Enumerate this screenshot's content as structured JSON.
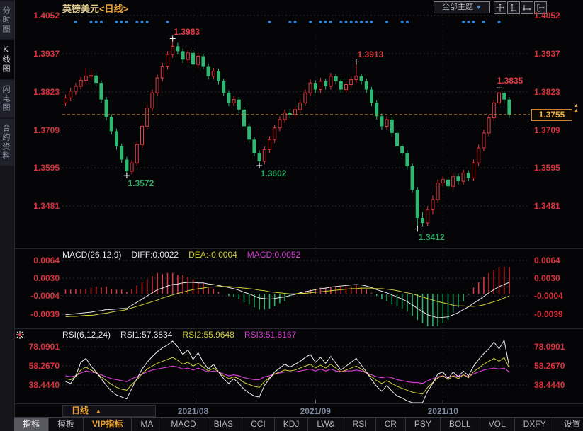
{
  "window": {
    "title_symbol": "英镑美元",
    "title_period": "<日线>"
  },
  "header": {
    "themes_button_label": "全部主题",
    "themes_caret": "▼",
    "icons": [
      "pan",
      "scale-y-axis",
      "scale-x-axis",
      "shift-right"
    ]
  },
  "sidebar": {
    "items": [
      {
        "label": "分时图",
        "selected": false
      },
      {
        "label": "K线图",
        "selected": true
      },
      {
        "label": "闪电图",
        "selected": false
      },
      {
        "label": "合约资料",
        "selected": false
      }
    ]
  },
  "colors": {
    "up": "#e23b44",
    "down": "#2eb872",
    "axis_label": "#d8323c",
    "annotation_high": "#e23b44",
    "annotation_low": "#2fae6a",
    "accent_orange": "#eca32f",
    "current_price_line": "#c8862f",
    "event_dot": "#2f7fd6",
    "grid": "#2c2c33",
    "month_line": "#1f1f26",
    "diff_line": "#e8e8ec",
    "dea_line": "#cfcf3a",
    "macd_line": "#d23bd2",
    "rsi1_line": "#f0f0f0",
    "rsi2_line": "#cfcf3a",
    "rsi3_line": "#d23bd2",
    "cross_marker": "#ffffff",
    "month_label": "#7e8ca2"
  },
  "chart_data": {
    "type": "candlestick",
    "symbol": "英镑美元",
    "period": "日线",
    "price_axis_labels": [
      "1.4052",
      "1.3937",
      "1.3823",
      "1.3709",
      "1.3595",
      "1.3481"
    ],
    "current_price": "1.3755",
    "x_axis_labels": [
      {
        "label": "2021/08",
        "index": 25
      },
      {
        "label": "2021/09",
        "index": 49
      },
      {
        "label": "2021/10",
        "index": 74
      }
    ],
    "annotations": {
      "highs": [
        {
          "label": "1.3983",
          "index": 21
        },
        {
          "label": "1.3913",
          "index": 57
        },
        {
          "label": "1.3835",
          "index": 85
        }
      ],
      "lows": [
        {
          "label": "1.3572",
          "index": 12
        },
        {
          "label": "1.3602",
          "index": 38
        },
        {
          "label": "1.3412",
          "index": 69
        }
      ]
    },
    "event_dot_indices": [
      2,
      5,
      6,
      7,
      10,
      11,
      12,
      14,
      15,
      16,
      20,
      40,
      44,
      45,
      48,
      50,
      51,
      52,
      54,
      55,
      56,
      57,
      58,
      59,
      60,
      63,
      66,
      67,
      78,
      79,
      80,
      82,
      85
    ],
    "candles": [
      [
        1.379,
        1.3815,
        1.378,
        1.3805
      ],
      [
        1.3805,
        1.3835,
        1.3795,
        1.3825
      ],
      [
        1.3825,
        1.385,
        1.3815,
        1.384
      ],
      [
        1.384,
        1.3868,
        1.383,
        1.3858
      ],
      [
        1.3858,
        1.3895,
        1.3848,
        1.387
      ],
      [
        1.387,
        1.3888,
        1.3858,
        1.3872
      ],
      [
        1.3872,
        1.388,
        1.384,
        1.385
      ],
      [
        1.385,
        1.3858,
        1.379,
        1.38
      ],
      [
        1.38,
        1.3808,
        1.3738,
        1.3748
      ],
      [
        1.3748,
        1.3756,
        1.3695,
        1.3705
      ],
      [
        1.3705,
        1.3713,
        1.365,
        1.366
      ],
      [
        1.366,
        1.3668,
        1.361,
        1.362
      ],
      [
        1.362,
        1.3628,
        1.3572,
        1.3585
      ],
      [
        1.3585,
        1.362,
        1.3575,
        1.361
      ],
      [
        1.361,
        1.3675,
        1.36,
        1.3665
      ],
      [
        1.3665,
        1.373,
        1.3655,
        1.372
      ],
      [
        1.372,
        1.3785,
        1.371,
        1.3775
      ],
      [
        1.3775,
        1.383,
        1.3765,
        1.382
      ],
      [
        1.382,
        1.3875,
        1.381,
        1.3865
      ],
      [
        1.3865,
        1.391,
        1.3855,
        1.39
      ],
      [
        1.39,
        1.3945,
        1.389,
        1.3935
      ],
      [
        1.3935,
        1.3983,
        1.3925,
        1.396
      ],
      [
        1.396,
        1.397,
        1.3935,
        1.3945
      ],
      [
        1.3945,
        1.3953,
        1.391,
        1.392
      ],
      [
        1.392,
        1.395,
        1.391,
        1.394
      ],
      [
        1.394,
        1.3948,
        1.3895,
        1.3905
      ],
      [
        1.3905,
        1.394,
        1.3895,
        1.393
      ],
      [
        1.393,
        1.3938,
        1.389,
        1.39
      ],
      [
        1.39,
        1.3908,
        1.386,
        1.387
      ],
      [
        1.387,
        1.3895,
        1.386,
        1.3885
      ],
      [
        1.3885,
        1.3893,
        1.3845,
        1.3855
      ],
      [
        1.3855,
        1.3863,
        1.381,
        1.382
      ],
      [
        1.382,
        1.3828,
        1.378,
        1.379
      ],
      [
        1.379,
        1.381,
        1.378,
        1.38
      ],
      [
        1.38,
        1.3808,
        1.376,
        1.377
      ],
      [
        1.377,
        1.3778,
        1.371,
        1.372
      ],
      [
        1.372,
        1.3728,
        1.367,
        1.368
      ],
      [
        1.368,
        1.3688,
        1.363,
        1.364
      ],
      [
        1.364,
        1.3648,
        1.3602,
        1.3615
      ],
      [
        1.3615,
        1.366,
        1.3605,
        1.365
      ],
      [
        1.365,
        1.369,
        1.364,
        1.368
      ],
      [
        1.368,
        1.3725,
        1.367,
        1.3715
      ],
      [
        1.3715,
        1.375,
        1.3705,
        1.374
      ],
      [
        1.374,
        1.377,
        1.373,
        1.376
      ],
      [
        1.376,
        1.3772,
        1.3745,
        1.3755
      ],
      [
        1.3755,
        1.378,
        1.3745,
        1.377
      ],
      [
        1.377,
        1.38,
        1.376,
        1.379
      ],
      [
        1.379,
        1.383,
        1.378,
        1.382
      ],
      [
        1.382,
        1.386,
        1.381,
        1.385
      ],
      [
        1.385,
        1.3858,
        1.382,
        1.383
      ],
      [
        1.383,
        1.3865,
        1.382,
        1.3855
      ],
      [
        1.3855,
        1.3863,
        1.383,
        1.384
      ],
      [
        1.384,
        1.388,
        1.383,
        1.387
      ],
      [
        1.387,
        1.3878,
        1.3845,
        1.3855
      ],
      [
        1.3855,
        1.3863,
        1.382,
        1.383
      ],
      [
        1.383,
        1.3855,
        1.382,
        1.3845
      ],
      [
        1.3845,
        1.387,
        1.3835,
        1.386
      ],
      [
        1.386,
        1.3913,
        1.385,
        1.387
      ],
      [
        1.387,
        1.3878,
        1.3845,
        1.3855
      ],
      [
        1.3855,
        1.3863,
        1.382,
        1.383
      ],
      [
        1.383,
        1.3838,
        1.378,
        1.379
      ],
      [
        1.379,
        1.3798,
        1.374,
        1.375
      ],
      [
        1.375,
        1.3758,
        1.371,
        1.372
      ],
      [
        1.372,
        1.375,
        1.371,
        1.374
      ],
      [
        1.374,
        1.3748,
        1.369,
        1.37
      ],
      [
        1.37,
        1.3708,
        1.365,
        1.366
      ],
      [
        1.366,
        1.3668,
        1.363,
        1.364
      ],
      [
        1.364,
        1.3648,
        1.359,
        1.36
      ],
      [
        1.36,
        1.3608,
        1.352,
        1.353
      ],
      [
        1.353,
        1.3538,
        1.3412,
        1.3445
      ],
      [
        1.3445,
        1.3463,
        1.3418,
        1.343
      ],
      [
        1.343,
        1.348,
        1.342,
        1.347
      ],
      [
        1.347,
        1.3512,
        1.3455,
        1.35
      ],
      [
        1.35,
        1.356,
        1.349,
        1.355
      ],
      [
        1.355,
        1.3572,
        1.354,
        1.356
      ],
      [
        1.356,
        1.3568,
        1.353,
        1.354
      ],
      [
        1.354,
        1.358,
        1.353,
        1.357
      ],
      [
        1.357,
        1.3578,
        1.3545,
        1.3555
      ],
      [
        1.3555,
        1.359,
        1.3545,
        1.358
      ],
      [
        1.358,
        1.3588,
        1.3555,
        1.3565
      ],
      [
        1.3565,
        1.362,
        1.3555,
        1.361
      ],
      [
        1.361,
        1.3665,
        1.36,
        1.3655
      ],
      [
        1.3655,
        1.371,
        1.3645,
        1.37
      ],
      [
        1.37,
        1.3755,
        1.369,
        1.3745
      ],
      [
        1.3745,
        1.38,
        1.3735,
        1.379
      ],
      [
        1.379,
        1.3835,
        1.378,
        1.382
      ],
      [
        1.382,
        1.3828,
        1.3788,
        1.38
      ],
      [
        1.38,
        1.3808,
        1.3745,
        1.3755
      ]
    ],
    "indicators": {
      "macd": {
        "header": [
          {
            "text": "MACD(26,12,9)",
            "color": "#e4e4e8"
          },
          {
            "text": "DIFF:0.0022",
            "color": "#e4e4e8"
          },
          {
            "text": "DEA:-0.0004",
            "color": "#cfcf3a"
          },
          {
            "text": "MACD:0.0052",
            "color": "#d23bd2"
          }
        ],
        "axis_labels": [
          "0.0064",
          "0.0030",
          "-0.0004",
          "-0.0039"
        ],
        "diff": [
          -0.004,
          -0.0039,
          -0.0038,
          -0.0037,
          -0.0036,
          -0.0035,
          -0.0033,
          -0.0032,
          -0.003,
          -0.003,
          -0.0029,
          -0.0028,
          -0.0028,
          -0.0022,
          -0.0016,
          -0.001,
          -0.0004,
          0.0002,
          0.0008,
          0.0011,
          0.0015,
          0.0018,
          0.0019,
          0.0021,
          0.0022,
          0.0022,
          0.0021,
          0.0021,
          0.0019,
          0.0018,
          0.0016,
          0.0014,
          0.0012,
          0.001,
          0.0007,
          0.0003,
          0.0,
          -0.0004,
          -0.0008,
          -0.0009,
          -0.001,
          -0.0009,
          -0.0007,
          -0.0006,
          -0.0003,
          -0.0001,
          0.0002,
          0.0004,
          0.0006,
          0.0008,
          0.001,
          0.0011,
          0.0013,
          0.0014,
          0.0015,
          0.0016,
          0.0017,
          0.0018,
          0.0017,
          0.0015,
          0.0012,
          0.0008,
          0.0005,
          0.0002,
          -0.0002,
          -0.0006,
          -0.001,
          -0.0015,
          -0.0021,
          -0.0028,
          -0.0034,
          -0.004,
          -0.0043,
          -0.0046,
          -0.0045,
          -0.0044,
          -0.004,
          -0.0036,
          -0.003,
          -0.0025,
          -0.0018,
          -0.0012,
          -0.0005,
          0.0002,
          0.0008,
          0.0014,
          0.0018,
          0.0022
        ],
        "dea": [
          -0.0044,
          -0.0043,
          -0.0043,
          -0.0042,
          -0.0041,
          -0.0041,
          -0.004,
          -0.0038,
          -0.0037,
          -0.0035,
          -0.0033,
          -0.0032,
          -0.003,
          -0.0027,
          -0.0024,
          -0.0021,
          -0.0018,
          -0.0015,
          -0.0012,
          -0.0008,
          -0.0005,
          -0.0002,
          0.0001,
          0.0003,
          0.0006,
          0.0008,
          0.001,
          0.0011,
          0.0013,
          0.0013,
          0.0014,
          0.0014,
          0.0014,
          0.0013,
          0.0012,
          0.0011,
          0.001,
          0.0009,
          0.0007,
          0.0006,
          0.0004,
          0.0003,
          0.0002,
          0.0001,
          0.0,
          0.0,
          0.0001,
          0.0001,
          0.0002,
          0.0003,
          0.0004,
          0.0005,
          0.0006,
          0.0007,
          0.0008,
          0.0009,
          0.001,
          0.001,
          0.0011,
          0.0011,
          0.0011,
          0.001,
          0.001,
          0.0009,
          0.0008,
          0.0006,
          0.0004,
          0.0002,
          0.0,
          -0.0003,
          -0.0006,
          -0.0009,
          -0.0012,
          -0.0015,
          -0.0017,
          -0.0019,
          -0.0022,
          -0.0023,
          -0.0023,
          -0.0024,
          -0.0024,
          -0.0023,
          -0.0021,
          -0.0018,
          -0.0015,
          -0.0012,
          -0.0008,
          -0.0004
        ]
      },
      "rsi": {
        "header": [
          {
            "text": "RSI(6,12,24)",
            "color": "#e4e4e8"
          },
          {
            "text": "RSI1:57.3834",
            "color": "#e4e4e8"
          },
          {
            "text": "RSI2:55.9648",
            "color": "#cfcf3a"
          },
          {
            "text": "RSI3:51.8167",
            "color": "#d23bd2"
          }
        ],
        "axis_labels": [
          "78.0901",
          "58.2670",
          "38.4440"
        ],
        "rsi1": [
          42,
          40,
          48,
          62,
          66,
          58,
          52,
          45,
          38,
          32,
          28,
          26,
          24,
          35,
          45,
          55,
          62,
          68,
          73,
          77,
          80,
          84,
          78,
          70,
          75,
          65,
          72,
          62,
          55,
          60,
          52,
          45,
          40,
          45,
          40,
          34,
          30,
          27,
          26,
          38,
          45,
          52,
          56,
          60,
          57,
          60,
          63,
          67,
          70,
          62,
          67,
          61,
          68,
          61,
          54,
          58,
          62,
          66,
          59,
          52,
          44,
          37,
          32,
          38,
          32,
          27,
          25,
          22,
          20,
          19,
          18,
          32,
          40,
          50,
          52,
          45,
          52,
          47,
          53,
          48,
          58,
          65,
          71,
          76,
          83,
          76,
          85,
          57.38
        ],
        "rsi2": [
          45,
          44,
          47,
          54,
          57,
          54,
          51,
          47,
          43,
          39,
          36,
          34,
          33,
          39,
          44,
          50,
          55,
          58,
          61,
          63,
          65,
          67,
          64,
          60,
          62,
          58,
          61,
          57,
          53,
          56,
          52,
          48,
          45,
          47,
          45,
          41,
          39,
          37,
          36,
          42,
          46,
          50,
          52,
          54,
          53,
          54,
          56,
          58,
          60,
          56,
          59,
          56,
          60,
          56,
          52,
          54,
          56,
          58,
          55,
          51,
          47,
          43,
          40,
          43,
          40,
          37,
          35,
          33,
          31,
          30,
          29,
          36,
          41,
          46,
          48,
          44,
          48,
          45,
          49,
          46,
          52,
          56,
          60,
          63,
          66,
          63,
          67,
          55.96
        ],
        "rsi3": [
          48,
          47,
          48,
          51,
          53,
          52,
          51,
          49,
          47,
          45,
          44,
          43,
          42,
          45,
          47,
          50,
          52,
          54,
          55,
          56,
          57,
          58,
          57,
          55,
          56,
          54,
          56,
          54,
          52,
          53,
          52,
          50,
          48,
          49,
          48,
          46,
          45,
          44,
          44,
          47,
          48,
          50,
          51,
          52,
          52,
          52,
          53,
          54,
          55,
          53,
          55,
          53,
          55,
          53,
          52,
          53,
          53,
          54,
          53,
          51,
          49,
          47,
          46,
          47,
          46,
          44,
          43,
          42,
          41,
          41,
          40,
          43,
          45,
          47,
          48,
          46,
          48,
          47,
          49,
          47,
          50,
          52,
          54,
          55,
          56,
          55,
          56,
          51.82
        ]
      }
    }
  },
  "xaxis_bar": {
    "period_label": "日线",
    "period_caret": "▲"
  },
  "toolbar": {
    "items": [
      {
        "label": "指标",
        "selected": true
      },
      {
        "label": "模板"
      },
      {
        "label": "VIP指标",
        "vip": true
      },
      {
        "label": "MA"
      },
      {
        "label": "MACD"
      },
      {
        "label": "BIAS"
      },
      {
        "label": "CCI"
      },
      {
        "label": "KDJ"
      },
      {
        "label": "LW&"
      },
      {
        "label": "RSI"
      },
      {
        "label": "CR"
      },
      {
        "label": "PSY"
      },
      {
        "label": "BOLL"
      },
      {
        "label": "VOL"
      },
      {
        "label": "DXFY"
      },
      {
        "label": "设置"
      }
    ]
  }
}
